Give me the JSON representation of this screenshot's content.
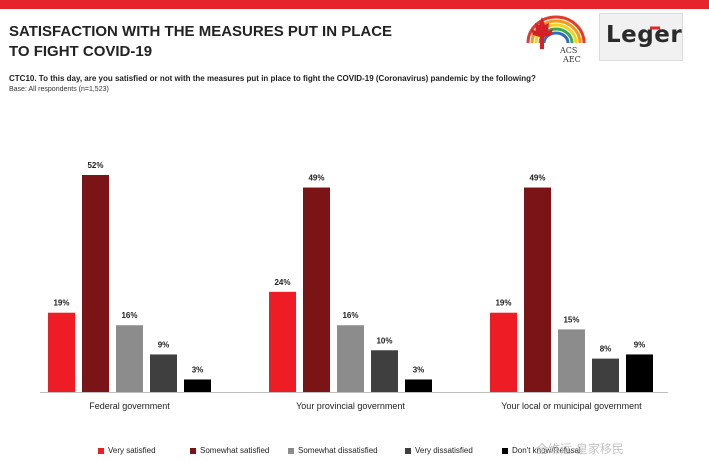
{
  "header": {
    "title_line1": "SATISFACTION WITH THE MEASURES PUT IN PLACE",
    "title_line2": "TO FIGHT COVID-19",
    "question": "CTC10. To this day, are you satisfied or not with the measures put in place to fight the COVID-19 (Coronavirus) pandemic by the following?",
    "base": "Base: All respondents (n=1,523)"
  },
  "logos": {
    "acs_text_top": "ACS",
    "acs_text_bottom": "AEC",
    "leger_text": "Leger"
  },
  "watermark": {
    "text": "全维远·皇家移民"
  },
  "chart_data": {
    "type": "bar",
    "categories": [
      "Federal government",
      "Your provincial government",
      "Your local or municipal government"
    ],
    "series": [
      {
        "name": "Very satisfied",
        "color": "#ee1c25",
        "values": [
          19,
          24,
          19
        ]
      },
      {
        "name": "Somewhat satisfied",
        "color": "#7b1416",
        "values": [
          52,
          49,
          49
        ]
      },
      {
        "name": "Somewhat dissatisfied",
        "color": "#8c8c8c",
        "values": [
          16,
          16,
          15
        ]
      },
      {
        "name": "Very dissatisfied",
        "color": "#3f3f3f",
        "values": [
          9,
          10,
          8
        ]
      },
      {
        "name": "Don't know/Refusal",
        "color": "#000000",
        "values": [
          3,
          3,
          9
        ]
      }
    ],
    "value_suffix": "%",
    "ylim": [
      0,
      52
    ],
    "grid": false,
    "legend_position": "bottom"
  }
}
